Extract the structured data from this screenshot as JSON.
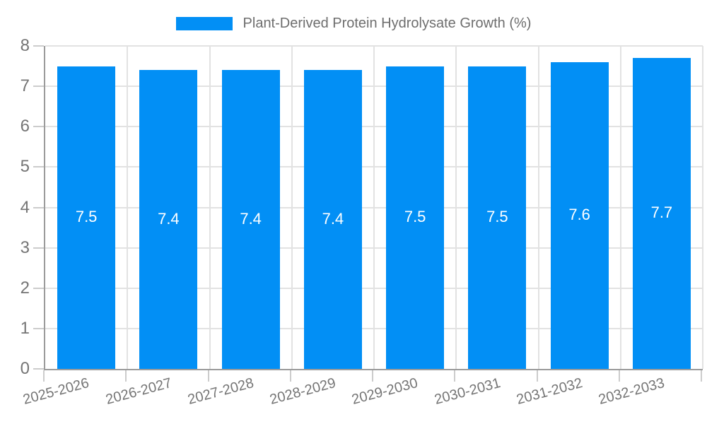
{
  "chart_data": {
    "type": "bar",
    "title": "Plant-Derived Protein Hydrolysate Growth (%)",
    "categories": [
      "2025-2026",
      "2026-2027",
      "2027-2028",
      "2028-2029",
      "2029-2030",
      "2030-2031",
      "2031-2032",
      "2032-2033"
    ],
    "values": [
      7.5,
      7.4,
      7.4,
      7.4,
      7.5,
      7.5,
      7.6,
      7.7
    ],
    "bar_labels": [
      "7.5",
      "7.4",
      "7.4",
      "7.4",
      "7.5",
      "7.5",
      "7.6",
      "7.7"
    ],
    "xlabel": "",
    "ylabel": "",
    "ylim": [
      0,
      8
    ],
    "yticks": [
      0,
      1,
      2,
      3,
      4,
      5,
      6,
      7,
      8
    ],
    "grid": true,
    "legend_position": "top"
  },
  "legend": {
    "label": "Plant-Derived Protein Hydrolysate Growth (%)"
  },
  "colors": {
    "bar": "#028ff5",
    "bar_label": "#ffffff",
    "axis_line": "#9b9b9b",
    "grid_line": "#e2e2e2",
    "tick_line": "#cccccc",
    "axis_text": "#757575",
    "legend_text": "#6e6e6e",
    "background": "#ffffff"
  }
}
